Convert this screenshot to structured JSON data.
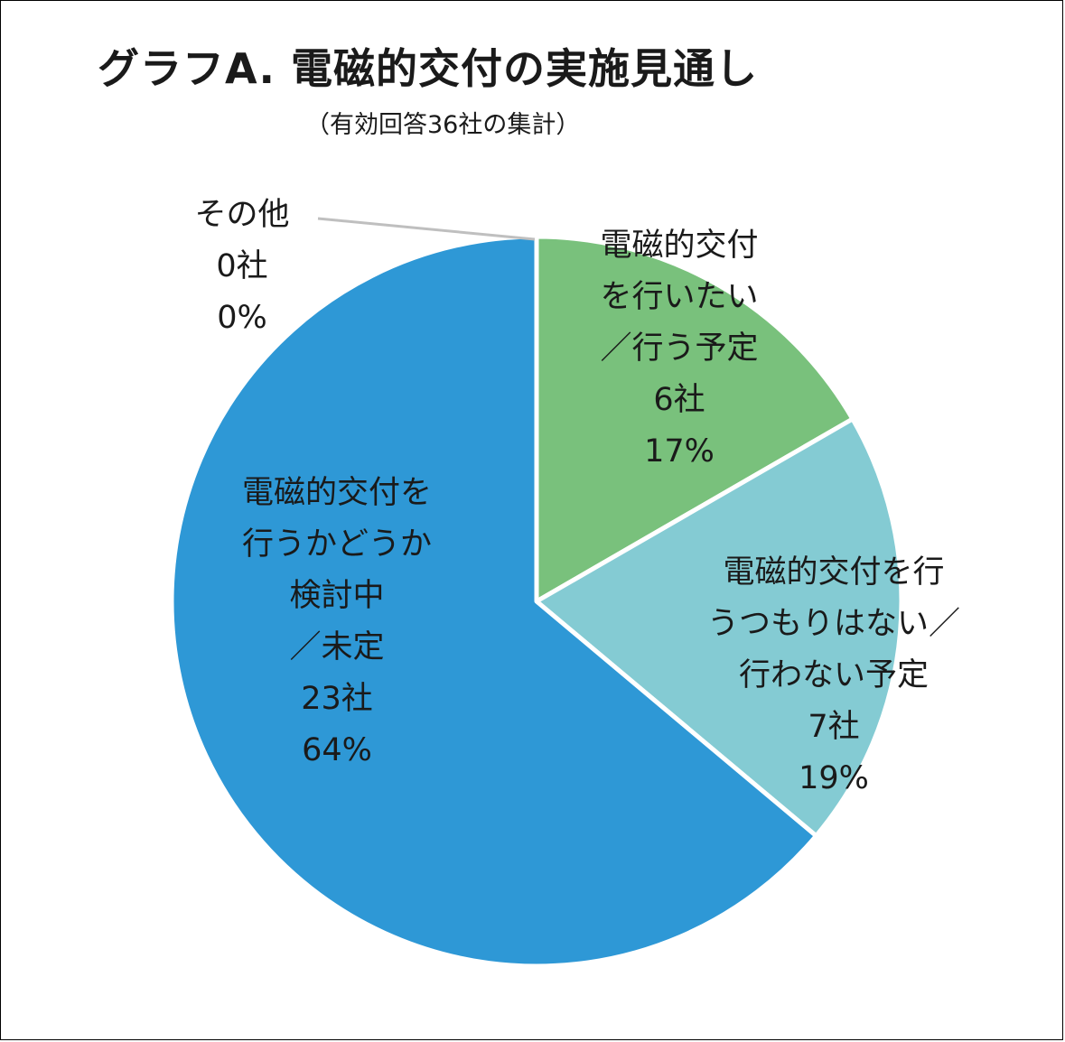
{
  "chart_data": {
    "type": "pie",
    "title": "グラフA.  電磁的交付の実施見通し",
    "subtitle": "（有効回答36社の集計）",
    "slices": [
      {
        "lines": [
          "電磁的交付",
          "を行いたい",
          "／行う予定"
        ],
        "count": "6社",
        "percent": "17%",
        "value": 6,
        "color": "#79c17c"
      },
      {
        "lines": [
          "電磁的交付を行",
          "うつもりはない／",
          "行わない予定"
        ],
        "count": "7社",
        "percent": "19%",
        "value": 7,
        "color": "#84cbd3"
      },
      {
        "lines": [
          "電磁的交付を",
          "行うかどうか",
          "検討中",
          "／未定"
        ],
        "count": "23社",
        "percent": "64%",
        "value": 23,
        "color": "#2e98d6"
      },
      {
        "lines": [
          "その他"
        ],
        "count": "0社",
        "percent": "0%",
        "value": 0,
        "color": "#bfbfbf"
      }
    ]
  }
}
